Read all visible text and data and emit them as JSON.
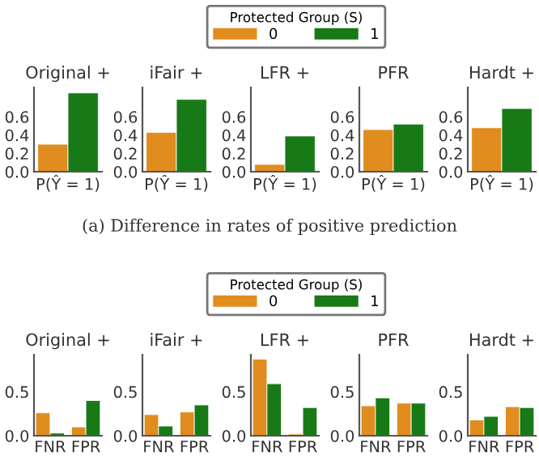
{
  "chart_data": [
    {
      "type": "bar",
      "title": "Original +",
      "categories": [
        "P(Ŷ = 1)"
      ],
      "series": [
        {
          "name": "0",
          "color": "#e08c1e",
          "values": [
            0.3
          ]
        },
        {
          "name": "1",
          "color": "#177a17",
          "values": [
            0.86
          ]
        }
      ],
      "ylim": [
        0,
        0.92
      ],
      "yticks": [
        {
          "value": 0,
          "label": "0.0"
        },
        {
          "value": 0.2,
          "label": "0.2"
        },
        {
          "value": 0.4,
          "label": "0.4"
        },
        {
          "value": 0.6,
          "label": "0.6"
        }
      ],
      "grid": false,
      "legend": "top",
      "legend_title": "Protected Group (S)",
      "annotations": [
        "(a) Difference in rates of positive prediction"
      ]
    },
    {
      "type": "bar",
      "title": "iFair +",
      "categories": [
        "P(Ŷ = 1)"
      ],
      "series": [
        {
          "color": "#e08c1e",
          "values": [
            0.43
          ]
        },
        {
          "color": "#177a17",
          "values": [
            0.79
          ]
        }
      ],
      "ylim": [
        0,
        0.92
      ],
      "yticks": [
        {
          "value": 0,
          "label": "0.0"
        },
        {
          "value": 0.2,
          "label": "0.2"
        },
        {
          "value": 0.4,
          "label": "0.4"
        },
        {
          "value": 0.6,
          "label": "0.6"
        }
      ],
      "grid": false
    },
    {
      "type": "bar",
      "title": "LFR +",
      "categories": [
        "P(Ŷ = 1)"
      ],
      "series": [
        {
          "color": "#e08c1e",
          "values": [
            0.08
          ]
        },
        {
          "color": "#177a17",
          "values": [
            0.39
          ]
        }
      ],
      "ylim": [
        0,
        0.92
      ],
      "yticks": [
        {
          "value": 0,
          "label": "0.0"
        },
        {
          "value": 0.2,
          "label": "0.2"
        },
        {
          "value": 0.4,
          "label": "0.4"
        },
        {
          "value": 0.6,
          "label": "0.6"
        }
      ],
      "grid": false
    },
    {
      "type": "bar",
      "title": "PFR",
      "categories": [
        "P(Ŷ = 1)"
      ],
      "series": [
        {
          "color": "#e08c1e",
          "values": [
            0.46
          ]
        },
        {
          "color": "#177a17",
          "values": [
            0.52
          ]
        }
      ],
      "ylim": [
        0,
        0.92
      ],
      "yticks": [
        {
          "value": 0,
          "label": "0.0"
        },
        {
          "value": 0.2,
          "label": "0.2"
        },
        {
          "value": 0.4,
          "label": "0.4"
        },
        {
          "value": 0.6,
          "label": "0.6"
        }
      ],
      "grid": false
    },
    {
      "type": "bar",
      "title": "Hardt +",
      "categories": [
        "P(Ŷ = 1)"
      ],
      "series": [
        {
          "color": "#e08c1e",
          "values": [
            0.48
          ]
        },
        {
          "color": "#177a17",
          "values": [
            0.69
          ]
        }
      ],
      "ylim": [
        0,
        0.92
      ],
      "yticks": [
        {
          "value": 0,
          "label": "0.0"
        },
        {
          "value": 0.2,
          "label": "0.2"
        },
        {
          "value": 0.4,
          "label": "0.4"
        },
        {
          "value": 0.6,
          "label": "0.6"
        }
      ],
      "grid": false
    },
    {
      "type": "bar",
      "title": "Original +",
      "categories": [
        "FNR",
        "FPR"
      ],
      "series": [
        {
          "name": "0",
          "color": "#e08c1e",
          "values": [
            0.26,
            0.1
          ]
        },
        {
          "name": "1",
          "color": "#177a17",
          "values": [
            0.03,
            0.4
          ]
        }
      ],
      "ylim": [
        0,
        0.92
      ],
      "yticks": [
        {
          "value": 0,
          "label": "0.0"
        },
        {
          "value": 0.5,
          "label": "0.5"
        }
      ],
      "grid": false,
      "legend": "top",
      "legend_title": "Protected Group (S)"
    },
    {
      "type": "bar",
      "title": "iFair +",
      "categories": [
        "FNR",
        "FPR"
      ],
      "series": [
        {
          "color": "#e08c1e",
          "values": [
            0.24,
            0.27
          ]
        },
        {
          "color": "#177a17",
          "values": [
            0.11,
            0.35
          ]
        }
      ],
      "ylim": [
        0,
        0.92
      ],
      "yticks": [
        {
          "value": 0,
          "label": "0.0"
        },
        {
          "value": 0.5,
          "label": "0.5"
        }
      ],
      "grid": false
    },
    {
      "type": "bar",
      "title": "LFR +",
      "categories": [
        "FNR",
        "FPR"
      ],
      "series": [
        {
          "color": "#e08c1e",
          "values": [
            0.87,
            0.02
          ]
        },
        {
          "color": "#177a17",
          "values": [
            0.59,
            0.32
          ]
        }
      ],
      "ylim": [
        0,
        0.92
      ],
      "yticks": [
        {
          "value": 0,
          "label": "0.0"
        },
        {
          "value": 0.5,
          "label": "0.5"
        }
      ],
      "grid": false
    },
    {
      "type": "bar",
      "title": "PFR",
      "categories": [
        "FNR",
        "FPR"
      ],
      "series": [
        {
          "color": "#e08c1e",
          "values": [
            0.34,
            0.37
          ]
        },
        {
          "color": "#177a17",
          "values": [
            0.43,
            0.37
          ]
        }
      ],
      "ylim": [
        0,
        0.92
      ],
      "yticks": [
        {
          "value": 0,
          "label": "0.0"
        },
        {
          "value": 0.5,
          "label": "0.5"
        }
      ],
      "grid": false
    },
    {
      "type": "bar",
      "title": "Hardt +",
      "categories": [
        "FNR",
        "FPR"
      ],
      "series": [
        {
          "color": "#e08c1e",
          "values": [
            0.18,
            0.33
          ]
        },
        {
          "color": "#177a17",
          "values": [
            0.22,
            0.32
          ]
        }
      ],
      "ylim": [
        0,
        0.92
      ],
      "yticks": [
        {
          "value": 0,
          "label": "0.0"
        },
        {
          "value": 0.5,
          "label": "0.5"
        }
      ],
      "grid": false
    }
  ]
}
